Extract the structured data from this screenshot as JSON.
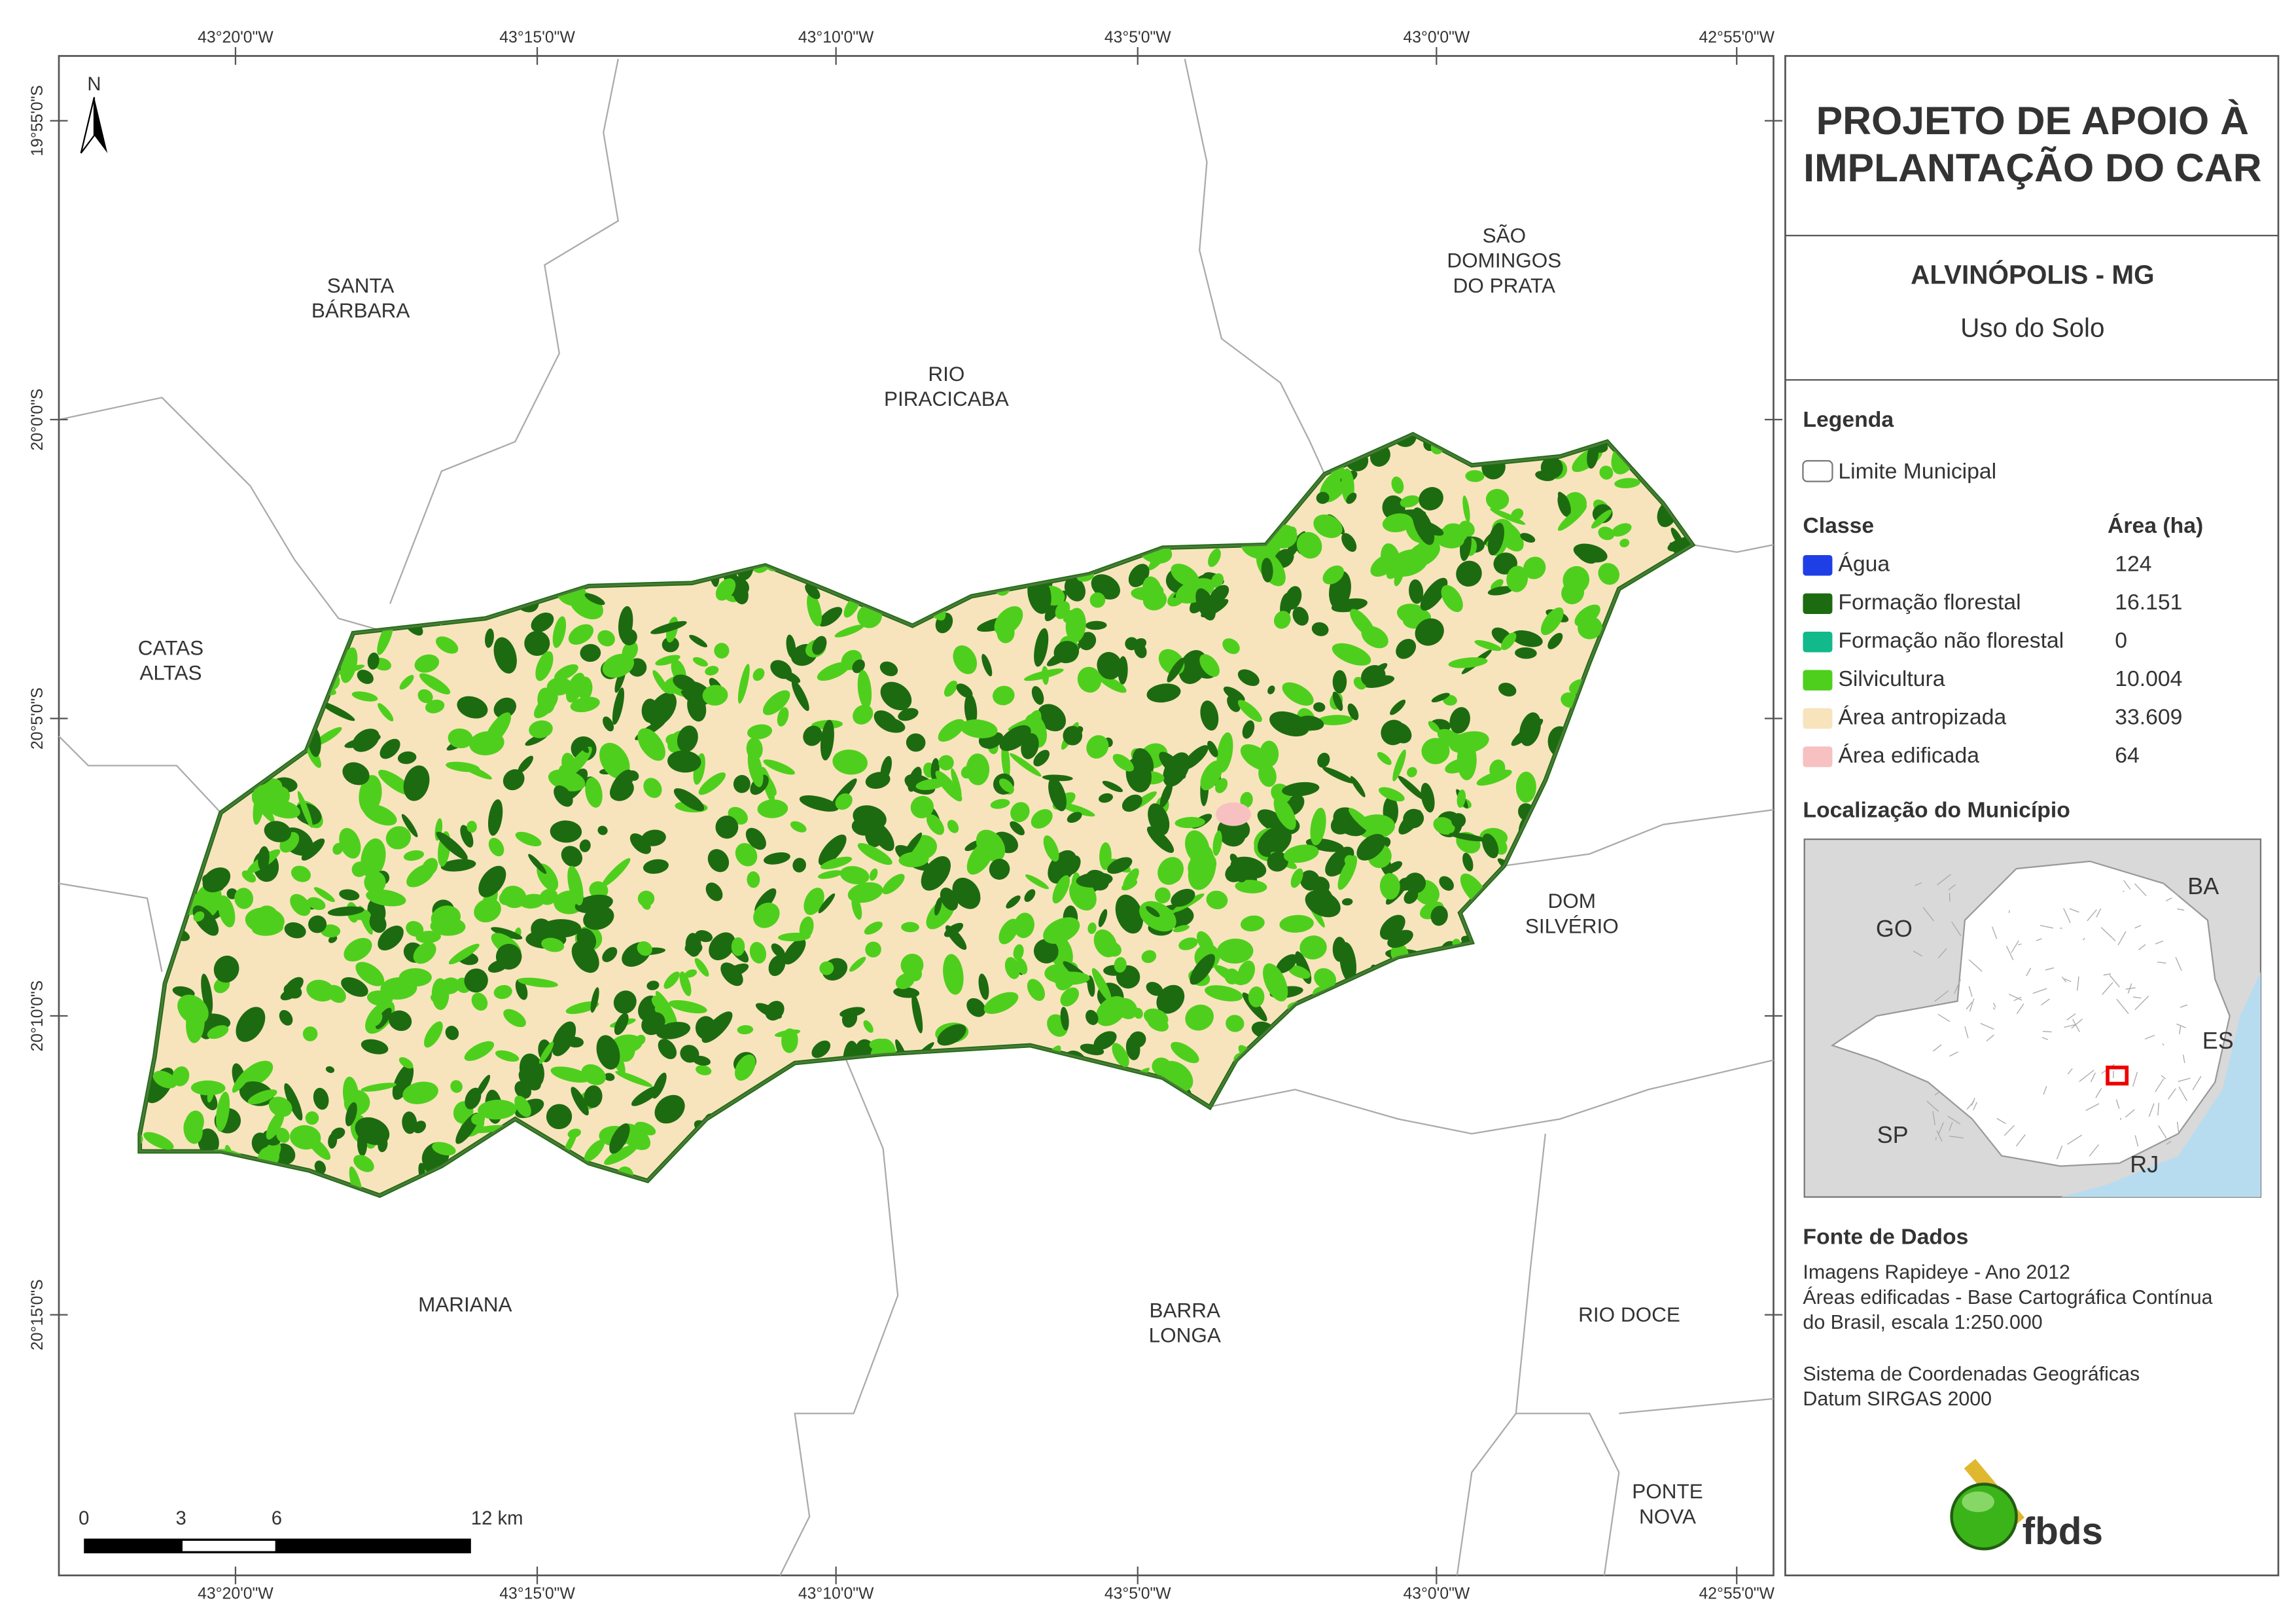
{
  "title": {
    "lines": [
      "PROJETO DE APOIO À",
      "IMPLANTAÇÃO DO CAR"
    ]
  },
  "municipality": "ALVINÓPOLIS - MG",
  "subtitle": "Uso do Solo",
  "legend": {
    "heading": "Legenda",
    "boundary": "Limite Municipal",
    "class_header": "Classe",
    "area_header": "Área (ha)",
    "classes": [
      {
        "name": "Água",
        "area": "124",
        "color": "#1f3fe6"
      },
      {
        "name": "Formação florestal",
        "area": "16.151",
        "color": "#1d6b10"
      },
      {
        "name": "Formação não florestal",
        "area": "0",
        "color": "#12b98a"
      },
      {
        "name": "Silvicultura",
        "area": "10.004",
        "color": "#4fcf1d"
      },
      {
        "name": "Área antropizada",
        "area": "33.609",
        "color": "#f7e4bd"
      },
      {
        "name": "Área edificada",
        "area": "64",
        "color": "#f7c1c1"
      }
    ]
  },
  "location": {
    "heading": "Localização do Município",
    "states": [
      "GO",
      "BA",
      "ES",
      "SP",
      "RJ"
    ]
  },
  "sources": {
    "heading": "Fonte de Dados",
    "lines": [
      "Imagens Rapideye - Ano 2012",
      "Áreas edificadas - Base Cartográfica Contínua",
      "do Brasil, escala 1:250.000",
      "Sistema de Coordenadas Geográficas",
      "Datum SIRGAS 2000"
    ]
  },
  "logo": "fbds",
  "north": "N",
  "graticule": {
    "longitudes": [
      "43°20'0\"W",
      "43°15'0\"W",
      "43°10'0\"W",
      "43°5'0\"W",
      "43°0'0\"W",
      "42°55'0\"W"
    ],
    "latitudes": [
      "19°55'0\"S",
      "20°0'0\"S",
      "20°5'0\"S",
      "20°10'0\"S",
      "20°15'0\"S"
    ]
  },
  "places": [
    {
      "lines": [
        "SANTA",
        "BÁRBARA"
      ]
    },
    {
      "lines": [
        "RIO",
        "PIRACICABA"
      ]
    },
    {
      "lines": [
        "SÃO",
        "DOMINGOS",
        "DO PRATA"
      ]
    },
    {
      "lines": [
        "CATAS",
        "ALTAS"
      ]
    },
    {
      "lines": [
        "DOM",
        "SILVÉRIO"
      ]
    },
    {
      "lines": [
        "MARIANA"
      ]
    },
    {
      "lines": [
        "BARRA",
        "LONGA"
      ]
    },
    {
      "lines": [
        "RIO DOCE"
      ]
    },
    {
      "lines": [
        "PONTE",
        "NOVA"
      ]
    }
  ],
  "scale_bar": {
    "labels": [
      "0",
      "3",
      "6",
      "12 km"
    ]
  }
}
